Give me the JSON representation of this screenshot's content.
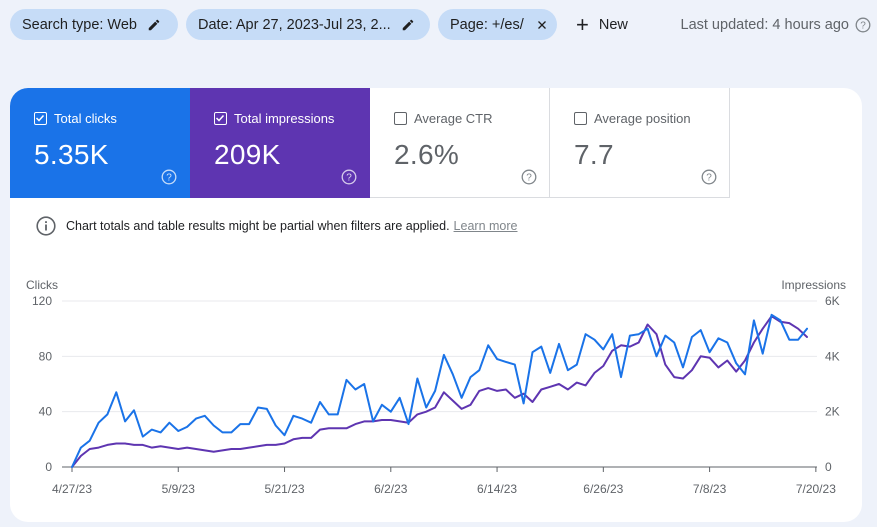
{
  "filters": {
    "search_type": "Search type: Web",
    "date": "Date: Apr 27, 2023-Jul 23, 2...",
    "page": "Page: +/es/",
    "new_label": "New"
  },
  "last_updated": "Last updated: 4 hours ago",
  "metrics": {
    "clicks": {
      "label": "Total clicks",
      "value": "5.35K",
      "checked": true
    },
    "impressions": {
      "label": "Total impressions",
      "value": "209K",
      "checked": true
    },
    "ctr": {
      "label": "Average CTR",
      "value": "2.6%",
      "checked": false
    },
    "position": {
      "label": "Average position",
      "value": "7.7",
      "checked": false
    }
  },
  "notice": {
    "text": "Chart totals and table results might be partial when filters are applied.",
    "link": "Learn more"
  },
  "colors": {
    "clicks": "#1a73e8",
    "impressions": "#5e35b1",
    "accent": "#1a73e8"
  },
  "chart_data": {
    "type": "line",
    "ylabel_left": "Clicks",
    "ylabel_right": "Impressions",
    "ylim_left": [
      0,
      120
    ],
    "ylim_right": [
      0,
      6000
    ],
    "yticks_left": [
      "0",
      "40",
      "80",
      "120"
    ],
    "yticks_right": [
      "0",
      "2K",
      "4K",
      "6K"
    ],
    "x_tick_labels": [
      "4/27/23",
      "5/9/23",
      "5/21/23",
      "6/2/23",
      "6/14/23",
      "6/26/23",
      "7/8/23",
      "7/20/23"
    ],
    "x_tick_index": [
      0,
      12,
      24,
      36,
      48,
      60,
      72,
      84
    ],
    "grid": true,
    "series": [
      {
        "name": "Clicks",
        "axis": "left",
        "values": [
          0,
          14,
          19,
          32,
          38,
          54,
          33,
          41,
          22,
          27,
          25,
          32,
          26,
          29,
          35,
          37,
          30,
          25,
          25,
          31,
          31,
          43,
          42,
          30,
          23,
          37,
          35,
          32,
          47,
          38,
          38,
          63,
          56,
          60,
          33,
          45,
          40,
          50,
          31,
          64,
          43,
          55,
          81,
          67,
          50,
          65,
          70,
          88,
          78,
          76,
          74,
          46,
          83,
          87,
          68,
          89,
          70,
          74,
          96,
          92,
          85,
          96,
          65,
          95,
          96,
          100,
          80,
          95,
          90,
          72,
          94,
          99,
          83,
          93,
          90,
          75,
          67,
          106,
          82,
          110,
          106,
          92,
          92,
          100
        ]
      },
      {
        "name": "Impressions",
        "axis": "right",
        "values": [
          0,
          400,
          650,
          700,
          800,
          850,
          850,
          800,
          800,
          700,
          750,
          700,
          650,
          700,
          650,
          600,
          550,
          600,
          650,
          650,
          700,
          750,
          800,
          800,
          850,
          1000,
          1050,
          1050,
          1350,
          1400,
          1400,
          1400,
          1550,
          1650,
          1650,
          1700,
          1700,
          1650,
          1600,
          1900,
          2000,
          2150,
          2700,
          2400,
          2100,
          2250,
          2750,
          2850,
          2750,
          2800,
          2500,
          2650,
          2350,
          2800,
          2900,
          3000,
          2800,
          3050,
          2950,
          3400,
          3650,
          4200,
          4400,
          4350,
          4500,
          5150,
          4800,
          3700,
          3250,
          3200,
          3500,
          4000,
          3950,
          3600,
          3850,
          3450,
          3850,
          4500,
          5000,
          5450,
          5250,
          5200,
          5000,
          4700
        ]
      }
    ]
  }
}
